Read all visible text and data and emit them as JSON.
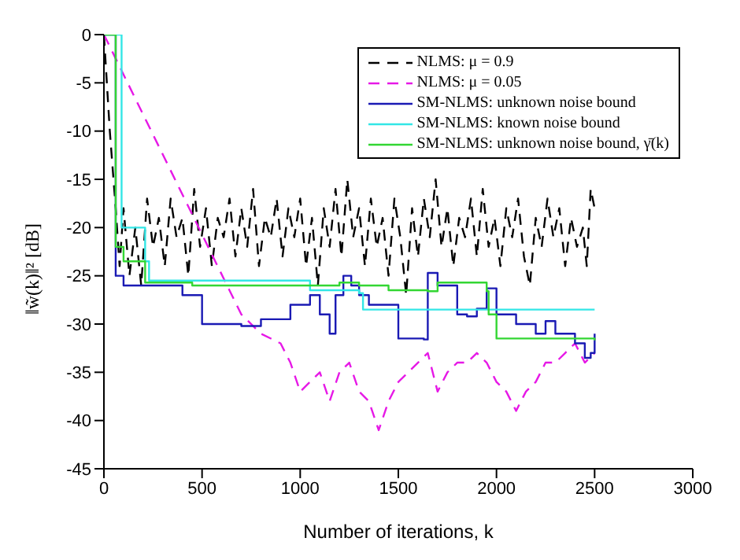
{
  "chart_data": {
    "type": "line",
    "xlabel": "Number of iterations, k",
    "ylabel": "‖w̃(k)‖² [dB]",
    "xlim": [
      0,
      3000
    ],
    "xticks": [
      0,
      500,
      1000,
      1500,
      2000,
      2500,
      3000
    ],
    "ylim": [
      -45,
      0
    ],
    "yticks": [
      -45,
      -40,
      -35,
      -30,
      -25,
      -20,
      -15,
      -10,
      -5,
      0
    ],
    "legend": "top right",
    "marker": "none",
    "series": [
      {
        "name": "NLMS: μ = 0.9",
        "color": "#000000",
        "line_style": "dashed",
        "x": [
          0,
          30,
          60,
          80,
          100,
          130,
          160,
          190,
          220,
          250,
          280,
          310,
          340,
          370,
          400,
          430,
          460,
          490,
          520,
          550,
          580,
          610,
          640,
          670,
          700,
          730,
          760,
          790,
          820,
          850,
          880,
          910,
          940,
          970,
          1000,
          1030,
          1060,
          1090,
          1120,
          1150,
          1180,
          1210,
          1240,
          1270,
          1300,
          1330,
          1360,
          1390,
          1420,
          1450,
          1480,
          1510,
          1540,
          1570,
          1600,
          1630,
          1660,
          1690,
          1720,
          1750,
          1780,
          1810,
          1840,
          1870,
          1900,
          1930,
          1960,
          1990,
          2020,
          2050,
          2080,
          2110,
          2140,
          2170,
          2200,
          2230,
          2260,
          2290,
          2320,
          2350,
          2380,
          2410,
          2440,
          2460,
          2480,
          2500
        ],
        "values": [
          0,
          -10,
          -18,
          -24,
          -18,
          -25,
          -20,
          -26,
          -17,
          -22,
          -19,
          -24,
          -17,
          -21,
          -19,
          -25,
          -16,
          -22,
          -18,
          -24,
          -19,
          -21,
          -17,
          -23,
          -18,
          -22,
          -16,
          -24,
          -19,
          -21,
          -17,
          -23,
          -18,
          -21,
          -17,
          -24,
          -19,
          -26,
          -18,
          -22,
          -16,
          -23,
          -15,
          -21,
          -18,
          -24,
          -17,
          -22,
          -19,
          -25,
          -17,
          -21,
          -27,
          -18,
          -23,
          -17,
          -21,
          -15,
          -22,
          -18,
          -24,
          -19,
          -21,
          -17,
          -23,
          -16,
          -22,
          -19,
          -24,
          -18,
          -21,
          -17,
          -23,
          -26,
          -19,
          -22,
          -17,
          -21,
          -18,
          -24,
          -19,
          -22,
          -20,
          -24,
          -16,
          -18
        ]
      },
      {
        "name": "NLMS: μ = 0.05",
        "color": "#e619e6",
        "line_style": "dashed",
        "x": [
          0,
          700,
          800,
          900,
          950,
          1000,
          1050,
          1100,
          1150,
          1200,
          1250,
          1300,
          1350,
          1400,
          1450,
          1500,
          1550,
          1600,
          1650,
          1700,
          1750,
          1800,
          1850,
          1900,
          1950,
          2000,
          2050,
          2100,
          2150,
          2200,
          2250,
          2300,
          2350,
          2400,
          2450,
          2500
        ],
        "values": [
          0,
          -29,
          -31,
          -32,
          -34,
          -37,
          -36,
          -35,
          -38,
          -35,
          -34,
          -37,
          -38,
          -41,
          -38,
          -36,
          -35,
          -34,
          -33,
          -37,
          -35,
          -34,
          -34,
          -33,
          -34,
          -36,
          -37,
          -39,
          -37,
          -36,
          -34,
          -34,
          -33,
          -32,
          -34,
          -33
        ]
      },
      {
        "name": "SM-NLMS: unknown noise bound",
        "type": "step",
        "color": "#1a1ab4",
        "x": [
          0,
          60,
          100,
          200,
          400,
          500,
          700,
          800,
          950,
          1050,
          1100,
          1150,
          1180,
          1220,
          1260,
          1300,
          1350,
          1450,
          1500,
          1630,
          1650,
          1700,
          1800,
          1850,
          1900,
          1950,
          2000,
          2100,
          2200,
          2250,
          2300,
          2400,
          2450,
          2480,
          2500
        ],
        "values": [
          0,
          -25,
          -26,
          -26,
          -27,
          -30,
          -30.2,
          -29.5,
          -28,
          -27,
          -29,
          -31,
          -27,
          -25,
          -26,
          -27,
          -28,
          -28,
          -31.5,
          -31.6,
          -24.7,
          -26,
          -29,
          -29.2,
          -28.4,
          -26.3,
          -29,
          -30,
          -31,
          -29.7,
          -31,
          -32,
          -33.5,
          -33,
          -31
        ]
      },
      {
        "name": "SM-NLMS: known noise bound",
        "type": "step",
        "color": "#33e6e6",
        "x": [
          0,
          90,
          170,
          210,
          230,
          850,
          1050,
          1300,
          1320,
          2500
        ],
        "values": [
          0,
          -20,
          -20,
          -23.5,
          -25.5,
          -25.5,
          -26.5,
          -26.8,
          -28.5,
          -28.5
        ]
      },
      {
        "name": "SM-NLMS: unknown noise bound, γ̄(k)",
        "type": "step",
        "color": "#33d633",
        "x": [
          0,
          60,
          100,
          200,
          210,
          450,
          1000,
          1200,
          1300,
          1450,
          1650,
          1700,
          1850,
          1950,
          1960,
          2000,
          2500
        ],
        "values": [
          0,
          -22,
          -23.5,
          -23.5,
          -25.7,
          -26,
          -26,
          -25.7,
          -26,
          -26.5,
          -26.6,
          -25.7,
          -25.7,
          -26.6,
          -29,
          -31.5,
          -31.7
        ]
      }
    ]
  }
}
